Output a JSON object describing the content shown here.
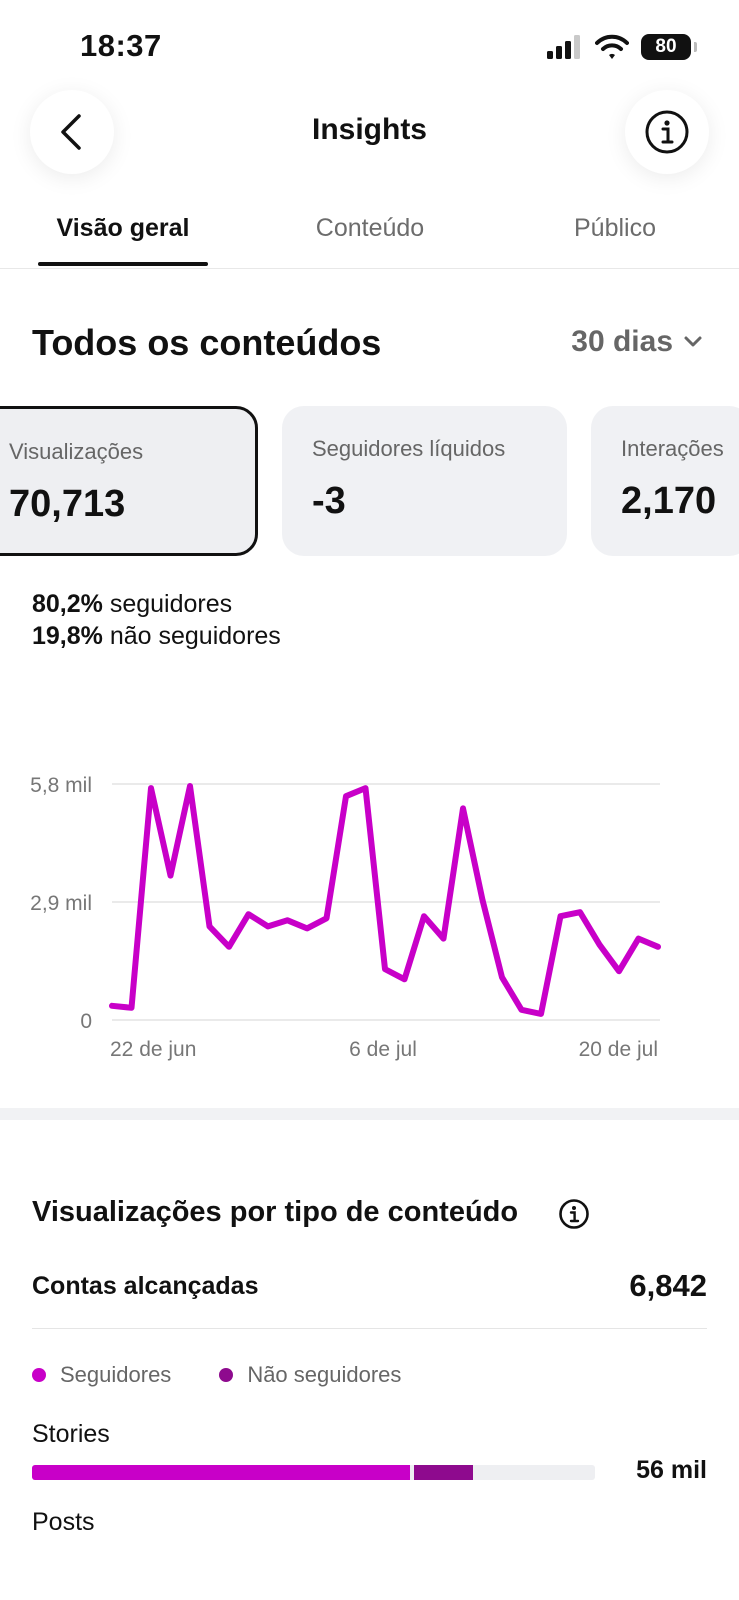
{
  "status_bar": {
    "time": "18:37",
    "battery": "80"
  },
  "header": {
    "title": "Insights",
    "back_icon": "chevron-left-icon",
    "info_icon": "info-icon"
  },
  "tabs": [
    {
      "label": "Visão geral",
      "active": true
    },
    {
      "label": "Conteúdo",
      "active": false
    },
    {
      "label": "Público",
      "active": false
    }
  ],
  "overview": {
    "title": "Todos os conteúdos",
    "range": "30 dias",
    "metrics": [
      {
        "label": "Visualizações",
        "value": "70,713",
        "selected": true
      },
      {
        "label": "Seguidores líquidos",
        "value": "-3",
        "selected": false
      },
      {
        "label": "Interações",
        "value": "2,170",
        "selected": false
      }
    ],
    "followers_pct": "80,2%",
    "followers_text": "seguidores",
    "non_followers_pct": "19,8%",
    "non_followers_text": "não seguidores"
  },
  "chart_data": {
    "type": "line",
    "y_ticks": [
      "5,8 mil",
      "2,9 mil",
      "0"
    ],
    "ylim": [
      0,
      5800
    ],
    "x_ticks": [
      "22 de jun",
      "6 de jul",
      "20 de jul"
    ],
    "grid": true,
    "series": [
      {
        "color": "#c800c8",
        "values": [
          350,
          300,
          5700,
          3550,
          5750,
          2300,
          1800,
          2600,
          2300,
          2450,
          2250,
          2500,
          5500,
          5700,
          1250,
          1000,
          2550,
          2000,
          5200,
          2950,
          1050,
          250,
          150,
          2550,
          2650,
          1850,
          1200,
          2000,
          1800
        ]
      }
    ]
  },
  "content_type_section": {
    "title": "Visualizações por tipo de conteúdo",
    "reach_label": "Contas alcançadas",
    "reach_value": "6,842",
    "legend": [
      {
        "label": "Seguidores",
        "color": "#c800c8"
      },
      {
        "label": "Não seguidores",
        "color": "#8e0a8e"
      }
    ],
    "rows": [
      {
        "label": "Stories",
        "followers_fraction": 0.672,
        "non_followers_fraction": 0.112,
        "value": "56 mil"
      },
      {
        "label": "Posts"
      }
    ]
  }
}
